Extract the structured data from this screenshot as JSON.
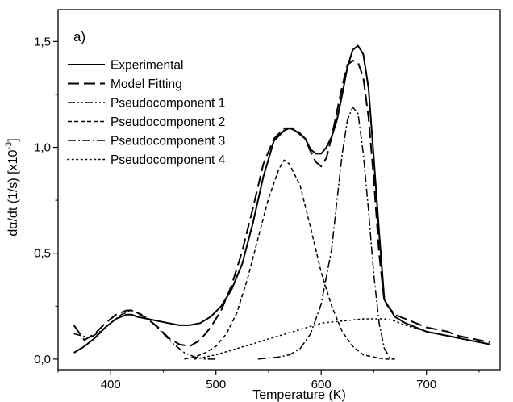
{
  "chart_data": {
    "type": "line",
    "panel_label": "a)",
    "xlabel": "Temperature (K)",
    "ylabel": "dα/dt (1/s) [x10",
    "ylabel_exponent": "-3",
    "ylabel_close": "]",
    "xlim": [
      350,
      770
    ],
    "ylim": [
      -0.05,
      1.65
    ],
    "x_ticks": [
      400,
      500,
      600,
      700
    ],
    "x_tick_labels": [
      "400",
      "500",
      "600",
      "700"
    ],
    "y_ticks": [
      0.0,
      0.5,
      1.0,
      1.5
    ],
    "y_tick_labels": [
      "0,0",
      "0,5",
      "1,0",
      "1,5"
    ],
    "legend_position": "upper-left",
    "grid": false,
    "series": [
      {
        "name": "Experimental",
        "dash": "solid",
        "x": [
          365,
          375,
          385,
          395,
          405,
          415,
          420,
          425,
          435,
          445,
          455,
          465,
          475,
          485,
          495,
          505,
          515,
          525,
          535,
          545,
          555,
          565,
          570,
          575,
          585,
          590,
          595,
          600,
          605,
          610,
          615,
          620,
          625,
          630,
          635,
          640,
          645,
          650,
          655,
          660,
          670,
          680,
          690,
          700,
          710,
          720,
          730,
          740,
          750,
          760
        ],
        "y": [
          0.03,
          0.06,
          0.1,
          0.15,
          0.19,
          0.21,
          0.21,
          0.2,
          0.19,
          0.18,
          0.17,
          0.16,
          0.16,
          0.17,
          0.2,
          0.25,
          0.33,
          0.45,
          0.64,
          0.86,
          1.03,
          1.08,
          1.09,
          1.08,
          1.04,
          0.99,
          0.97,
          0.97,
          1.0,
          1.05,
          1.13,
          1.25,
          1.38,
          1.46,
          1.48,
          1.44,
          1.28,
          0.95,
          0.6,
          0.28,
          0.2,
          0.17,
          0.15,
          0.13,
          0.12,
          0.11,
          0.1,
          0.09,
          0.08,
          0.07
        ]
      },
      {
        "name": "Model Fitting",
        "dash": "long-dash",
        "x": [
          365,
          375,
          385,
          395,
          405,
          415,
          420,
          425,
          435,
          445,
          455,
          465,
          475,
          485,
          495,
          505,
          515,
          525,
          535,
          545,
          555,
          565,
          570,
          575,
          585,
          590,
          595,
          600,
          605,
          610,
          615,
          620,
          625,
          630,
          635,
          640,
          645,
          650,
          655,
          660,
          670,
          680,
          690,
          700,
          710,
          720,
          730,
          740,
          750,
          760
        ],
        "y": [
          0.16,
          0.09,
          0.12,
          0.17,
          0.21,
          0.23,
          0.23,
          0.22,
          0.19,
          0.15,
          0.1,
          0.07,
          0.06,
          0.09,
          0.15,
          0.23,
          0.35,
          0.51,
          0.71,
          0.92,
          1.04,
          1.09,
          1.09,
          1.09,
          1.04,
          0.98,
          0.93,
          0.91,
          0.95,
          1.05,
          1.17,
          1.29,
          1.39,
          1.41,
          1.4,
          1.33,
          1.14,
          0.85,
          0.5,
          0.27,
          0.21,
          0.19,
          0.17,
          0.15,
          0.14,
          0.13,
          0.11,
          0.1,
          0.09,
          0.08
        ]
      },
      {
        "name": "Pseudocomponent 1",
        "dash": "dash-dot-dot",
        "x": [
          365,
          380,
          390,
          400,
          410,
          420,
          430,
          440,
          450,
          460,
          470,
          480,
          490,
          500
        ],
        "y": [
          0.12,
          0.1,
          0.13,
          0.17,
          0.21,
          0.23,
          0.21,
          0.17,
          0.12,
          0.07,
          0.03,
          0.01,
          0.0,
          0.0
        ]
      },
      {
        "name": "Pseudocomponent 2",
        "dash": "short-dash",
        "x": [
          470,
          480,
          490,
          500,
          510,
          520,
          530,
          540,
          550,
          560,
          565,
          570,
          580,
          590,
          600,
          610,
          620,
          630,
          640,
          650,
          660,
          670
        ],
        "y": [
          0.0,
          0.01,
          0.03,
          0.06,
          0.12,
          0.22,
          0.38,
          0.57,
          0.76,
          0.9,
          0.94,
          0.92,
          0.82,
          0.62,
          0.41,
          0.25,
          0.13,
          0.06,
          0.02,
          0.01,
          0.0,
          0.0
        ]
      },
      {
        "name": "Pseudocomponent 3",
        "dash": "dash-dot",
        "x": [
          540,
          560,
          570,
          580,
          590,
          600,
          610,
          615,
          620,
          625,
          630,
          635,
          640,
          645,
          650,
          655,
          660,
          665,
          670
        ],
        "y": [
          0.0,
          0.01,
          0.02,
          0.05,
          0.12,
          0.26,
          0.52,
          0.75,
          0.97,
          1.13,
          1.19,
          1.16,
          0.97,
          0.7,
          0.4,
          0.17,
          0.05,
          0.01,
          0.0
        ]
      },
      {
        "name": "Pseudocomponent 4",
        "dash": "dotted",
        "x": [
          480,
          500,
          520,
          540,
          560,
          580,
          600,
          620,
          640,
          650,
          660,
          670,
          680,
          700,
          720,
          740,
          760
        ],
        "y": [
          0.0,
          0.02,
          0.05,
          0.08,
          0.11,
          0.14,
          0.17,
          0.18,
          0.19,
          0.19,
          0.19,
          0.18,
          0.16,
          0.13,
          0.11,
          0.09,
          0.07
        ]
      }
    ]
  }
}
